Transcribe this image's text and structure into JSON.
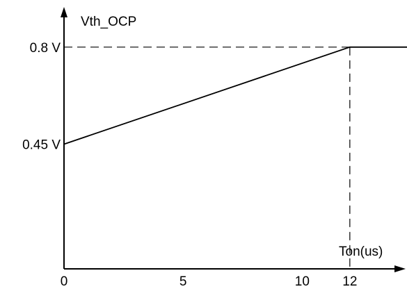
{
  "chart_data": {
    "type": "line",
    "ylabel": "Vth_OCP",
    "xlabel": "Ton(us)",
    "x_ticks": [
      "0",
      "5",
      "10",
      "12"
    ],
    "y_ticks": [
      "0.45 V",
      "0.8 V"
    ],
    "xlim": [
      0,
      14.4
    ],
    "ylim": [
      0,
      0.97
    ],
    "grid": false,
    "series": [
      {
        "x": [
          0,
          12,
          14.4
        ],
        "y": [
          0.45,
          0.8,
          0.8
        ]
      }
    ],
    "guides": {
      "x": 12,
      "y": 0.8,
      "style": "dashed"
    },
    "colors": {
      "axis": "#000000",
      "line": "#000000"
    }
  }
}
